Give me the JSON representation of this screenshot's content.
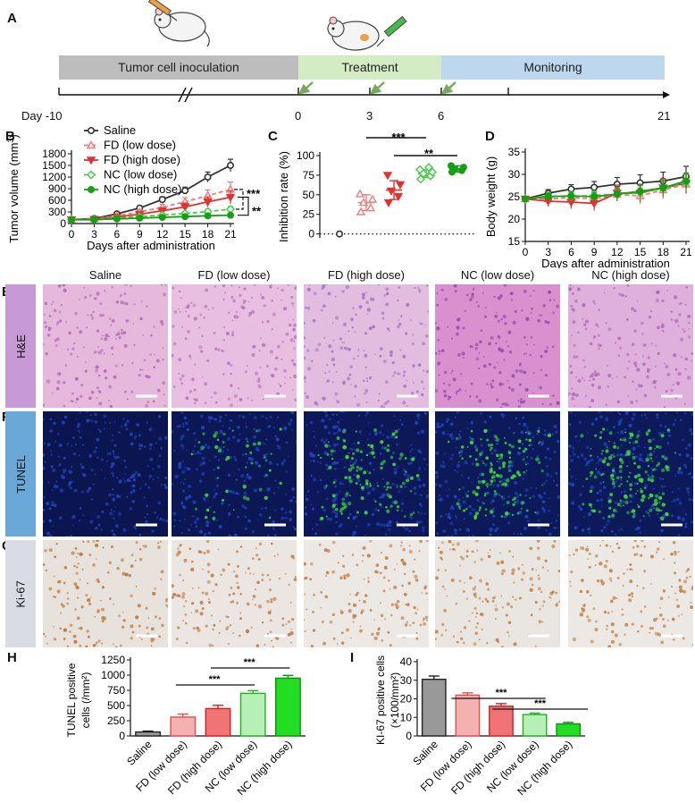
{
  "figure": {
    "panels": {
      "A": "A",
      "B": "B",
      "C": "C",
      "D": "D",
      "E": "E",
      "F": "F",
      "G": "G",
      "H": "H",
      "I": "I"
    },
    "timeline": {
      "stages": [
        "Tumor cell inoculation",
        "Treatment",
        "Monitoring"
      ],
      "day_labels": [
        "Day -10",
        "0",
        "3",
        "6",
        "21"
      ],
      "stage_colors": [
        "#bdbdbd",
        "#d4ecc4",
        "#bcd7ee"
      ]
    },
    "groups": [
      "Saline",
      "FD (low dose)",
      "FD (high dose)",
      "NC (low dose)",
      "NC (high dose)"
    ],
    "group_colors": [
      "#333333",
      "#ef7b7b",
      "#e53030",
      "#44cc44",
      "#14a014"
    ],
    "stain_rows": [
      "H&E",
      "TUNEL",
      "Ki-67"
    ],
    "stain_row_colors": [
      "#c79ad6",
      "#6aa8d8",
      "#d9dce4"
    ]
  },
  "chart_data": [
    {
      "type": "line",
      "panel": "B",
      "title": "",
      "xlabel": "Days after administration",
      "ylabel": "Tumor volume (mm³)",
      "ylabel_main": "Tumor volume (mm",
      "ylabel_sup": "3",
      "ylabel_close": ")",
      "x": [
        0,
        3,
        6,
        9,
        12,
        15,
        18,
        21
      ],
      "xticks": [
        "0",
        "3",
        "6",
        "9",
        "12",
        "15",
        "18",
        "21"
      ],
      "yticks": [
        "0",
        "300",
        "600",
        "900",
        "1200",
        "1500",
        "1800"
      ],
      "ylim": [
        0,
        1800
      ],
      "series": [
        {
          "name": "Saline",
          "values": [
            100,
            130,
            250,
            400,
            620,
            850,
            1200,
            1500
          ],
          "errors": [
            15,
            20,
            40,
            50,
            70,
            90,
            130,
            160
          ]
        },
        {
          "name": "FD (low dose)",
          "values": [
            100,
            120,
            200,
            300,
            420,
            560,
            720,
            880
          ],
          "errors": [
            15,
            20,
            40,
            60,
            80,
            110,
            150,
            190
          ]
        },
        {
          "name": "FD (high dose)",
          "values": [
            100,
            110,
            170,
            240,
            330,
            430,
            560,
            680
          ],
          "errors": [
            15,
            20,
            40,
            60,
            80,
            100,
            130,
            170
          ]
        },
        {
          "name": "NC (low dose)",
          "values": [
            100,
            105,
            140,
            180,
            220,
            260,
            310,
            370
          ],
          "errors": [
            10,
            15,
            25,
            35,
            40,
            50,
            60,
            70
          ]
        },
        {
          "name": "NC (high dose)",
          "values": [
            100,
            100,
            120,
            140,
            160,
            180,
            200,
            215
          ],
          "errors": [
            10,
            15,
            20,
            25,
            30,
            35,
            40,
            45
          ]
        }
      ],
      "annotations": [
        "***",
        "**"
      ]
    },
    {
      "type": "scatter",
      "panel": "C",
      "ylabel": "Inhibition rate (%)",
      "yticks": [
        "0",
        "25",
        "50",
        "75",
        "100"
      ],
      "ylim": [
        -5,
        100
      ],
      "groups": [
        {
          "name": "Saline",
          "mean": 0,
          "sd": 0,
          "points": [
            0
          ]
        },
        {
          "name": "FD (low dose)",
          "mean": 40,
          "sd": 10,
          "points": [
            28,
            33,
            40,
            44,
            51
          ]
        },
        {
          "name": "FD (high dose)",
          "mean": 56,
          "sd": 12,
          "points": [
            40,
            48,
            55,
            63,
            75
          ]
        },
        {
          "name": "NC (low dose)",
          "mean": 77,
          "sd": 5,
          "points": [
            70,
            74,
            77,
            79,
            82,
            85
          ]
        },
        {
          "name": "NC (high dose)",
          "mean": 83,
          "sd": 4,
          "points": [
            79,
            81,
            83,
            85,
            87
          ]
        }
      ],
      "annotations": [
        "***",
        "**"
      ]
    },
    {
      "type": "line",
      "panel": "D",
      "xlabel": "Days after administration",
      "ylabel": "Body weight (g)",
      "x": [
        0,
        3,
        6,
        9,
        12,
        15,
        18,
        21
      ],
      "xticks": [
        "0",
        "3",
        "6",
        "9",
        "12",
        "15",
        "18",
        "21"
      ],
      "yticks": [
        "15",
        "20",
        "25",
        "30",
        "35"
      ],
      "ylim": [
        15,
        35
      ],
      "series": [
        {
          "name": "Saline",
          "values": [
            24.5,
            25.8,
            26.7,
            27.1,
            27.8,
            28.1,
            28.5,
            29.5
          ],
          "errors": [
            0.5,
            0.8,
            1.0,
            1.3,
            1.5,
            1.8,
            2.0,
            2.3
          ]
        },
        {
          "name": "FD (low dose)",
          "values": [
            24.5,
            24.5,
            24.8,
            24.5,
            25.5,
            25.2,
            26.5,
            27.8
          ],
          "errors": [
            0.5,
            0.8,
            1.0,
            1.2,
            1.5,
            1.8,
            2.0,
            2.2
          ]
        },
        {
          "name": "FD (high dose)",
          "values": [
            24.5,
            24.0,
            23.8,
            23.5,
            25.8,
            25.8,
            27.0,
            28.0
          ],
          "errors": [
            0.5,
            1.2,
            1.5,
            1.6,
            1.8,
            2.0,
            2.0,
            2.2
          ]
        },
        {
          "name": "NC (low dose)",
          "values": [
            24.5,
            25.2,
            25.0,
            25.3,
            25.5,
            26.0,
            26.8,
            28.2
          ],
          "errors": [
            0.5,
            0.8,
            1.0,
            1.0,
            1.2,
            1.5,
            1.5,
            1.8
          ]
        },
        {
          "name": "NC (high dose)",
          "values": [
            24.5,
            25.0,
            25.2,
            25.0,
            25.6,
            26.2,
            27.0,
            28.5
          ],
          "errors": [
            0.5,
            0.8,
            1.0,
            1.0,
            1.2,
            1.4,
            1.6,
            1.8
          ]
        }
      ]
    },
    {
      "type": "bar",
      "panel": "H",
      "ylabel_line1": "TUNEL positive",
      "ylabel_line2": "cells (/mm²)",
      "categories": [
        "Saline",
        "FD (low dose)",
        "FD (high dose)",
        "NC (low dose)",
        "NC (high dose)"
      ],
      "values": [
        65,
        310,
        450,
        700,
        950
      ],
      "errors": [
        15,
        50,
        55,
        45,
        45
      ],
      "yticks": [
        "0",
        "250",
        "500",
        "750",
        "1000",
        "1250"
      ],
      "ylim": [
        0,
        1250
      ],
      "annotations": [
        "***",
        "***"
      ]
    },
    {
      "type": "bar",
      "panel": "I",
      "ylabel_line1": "KI-67 positive cells",
      "ylabel_line2": "(×100/mm²)",
      "categories": [
        "Saline",
        "FD (low dose)",
        "FD (high dose)",
        "NC (low dose)",
        "NC (high dose)"
      ],
      "values": [
        30.5,
        22,
        16,
        11.5,
        6.5
      ],
      "errors": [
        1.8,
        1.2,
        1.4,
        0.8,
        0.8
      ],
      "yticks": [
        "0",
        "10",
        "20",
        "30",
        "40"
      ],
      "ylim": [
        0,
        40
      ],
      "annotations": [
        "***",
        "***"
      ]
    }
  ]
}
